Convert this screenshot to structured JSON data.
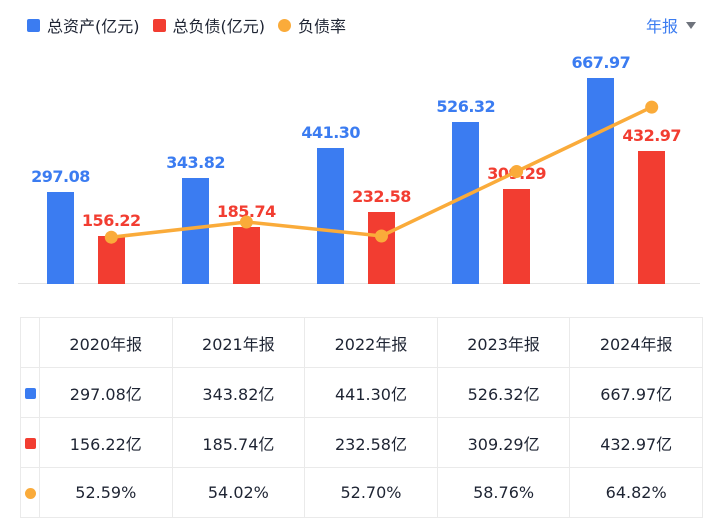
{
  "colors": {
    "assets_blue": "#3b7cf1",
    "liabilities_red": "#f23d31",
    "ratio_orange": "#faab3a",
    "text_dark": "#1e2433",
    "border_gray": "#eaeaea",
    "axis_gray": "#e3e3e3"
  },
  "legend": {
    "items": [
      {
        "label": "总资产(亿元)",
        "marker": "blue-square",
        "color": "#3b7cf1"
      },
      {
        "label": "总负债(亿元)",
        "marker": "red-square",
        "color": "#f23d31"
      },
      {
        "label": "负债率",
        "marker": "orange-dot",
        "color": "#faab3a"
      }
    ]
  },
  "period_selector": {
    "label": "年报",
    "icon": "chevron-down-icon"
  },
  "chart_data": {
    "type": "bar",
    "categories": [
      "2020年报",
      "2021年报",
      "2022年报",
      "2023年报",
      "2024年报"
    ],
    "series": [
      {
        "name": "总资产(亿元)",
        "type": "bar",
        "color": "#3b7cf1",
        "values": [
          297.08,
          343.82,
          441.3,
          526.32,
          667.97
        ]
      },
      {
        "name": "总负债(亿元)",
        "type": "bar",
        "color": "#f23d31",
        "values": [
          156.22,
          185.74,
          232.58,
          309.29,
          432.97
        ]
      },
      {
        "name": "负债率",
        "type": "line",
        "color": "#faab3a",
        "unit": "%",
        "values": [
          52.59,
          54.02,
          52.7,
          58.76,
          64.82
        ]
      }
    ],
    "title": "",
    "xlabel": "",
    "ylabel": "",
    "layout": {
      "grid": false,
      "legend_position": "top-left",
      "value_labels": "above-bars",
      "axis_labels_hidden": true
    }
  },
  "table": {
    "headers": [
      "2020年报",
      "2021年报",
      "2022年报",
      "2023年报",
      "2024年报"
    ],
    "rows": [
      {
        "name": "总资产(亿元)",
        "marker": "blue-square",
        "cells": [
          "297.08亿",
          "343.82亿",
          "441.30亿",
          "526.32亿",
          "667.97亿"
        ]
      },
      {
        "name": "总负债(亿元)",
        "marker": "red-square",
        "cells": [
          "156.22亿",
          "185.74亿",
          "232.58亿",
          "309.29亿",
          "432.97亿"
        ]
      },
      {
        "name": "负债率",
        "marker": "orange-dot",
        "cells": [
          "52.59%",
          "54.02%",
          "52.70%",
          "58.76%",
          "64.82%"
        ]
      }
    ]
  }
}
